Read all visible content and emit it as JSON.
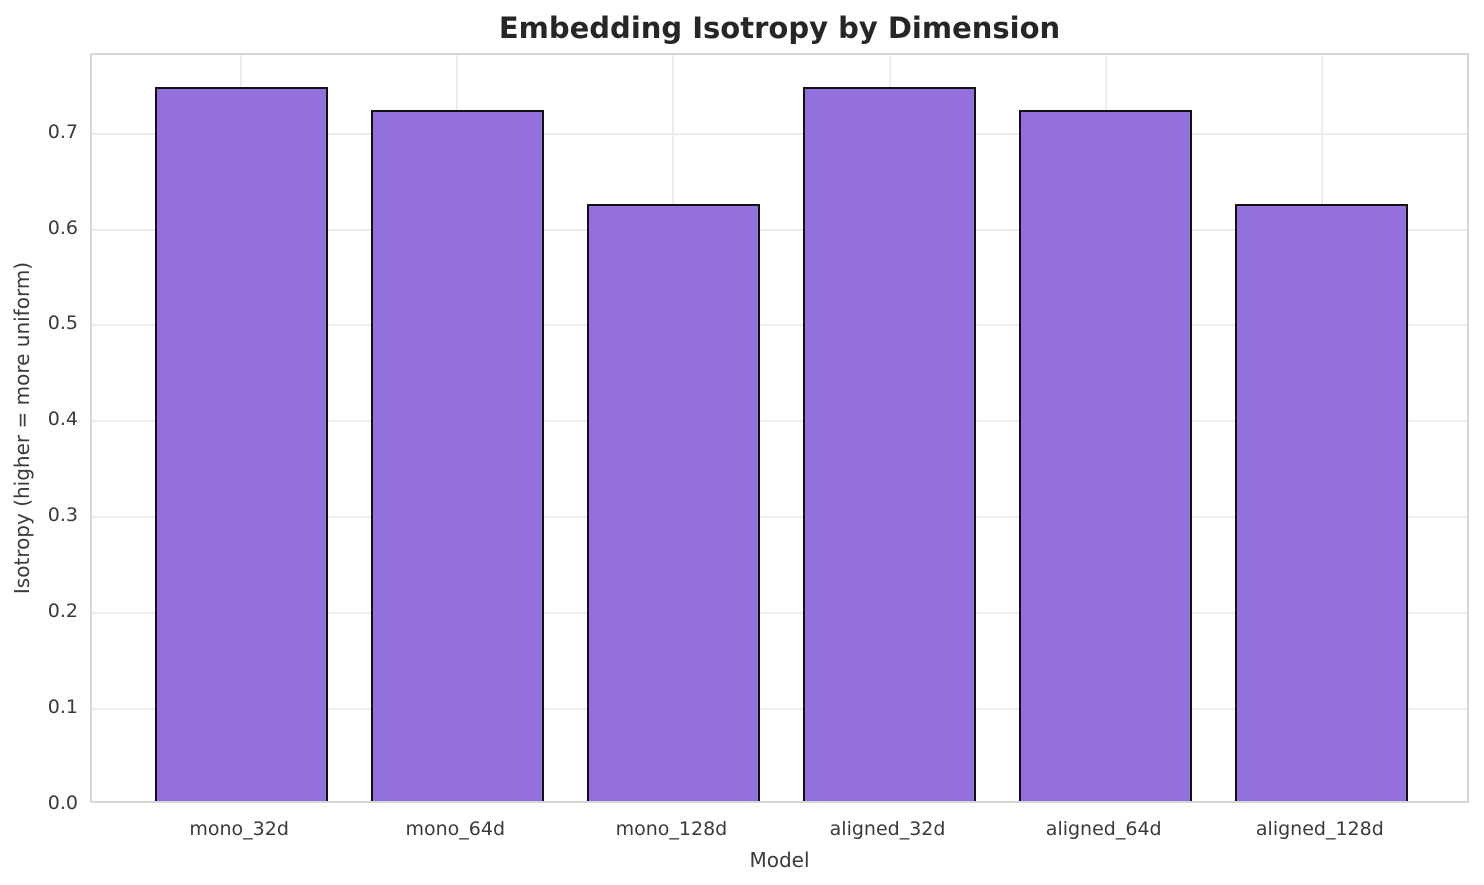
{
  "chart_data": {
    "type": "bar",
    "title": "Embedding Isotropy by Dimension",
    "xlabel": "Model",
    "ylabel": "Isotropy (higher = more uniform)",
    "categories": [
      "mono_32d",
      "mono_64d",
      "mono_128d",
      "aligned_32d",
      "aligned_64d",
      "aligned_128d"
    ],
    "values": [
      0.745,
      0.72,
      0.623,
      0.745,
      0.72,
      0.623
    ],
    "yticks": [
      0.0,
      0.1,
      0.2,
      0.3,
      0.4,
      0.5,
      0.6,
      0.7
    ],
    "ytick_labels": [
      "0.0",
      "0.1",
      "0.2",
      "0.3",
      "0.4",
      "0.5",
      "0.6",
      "0.7"
    ],
    "ylim": [
      0,
      0.782
    ],
    "xlim": [
      -0.69,
      5.69
    ],
    "bar_width_units": 0.8,
    "grid": true,
    "legend_position": "none",
    "colors": {
      "bar_fill": "#9370DB",
      "bar_edge": "#111111",
      "grid_line": "#ededed",
      "frame": "#d6d6d6",
      "title_text": "#262626",
      "tick_text": "#3a3a3a",
      "background": "#ffffff"
    }
  }
}
